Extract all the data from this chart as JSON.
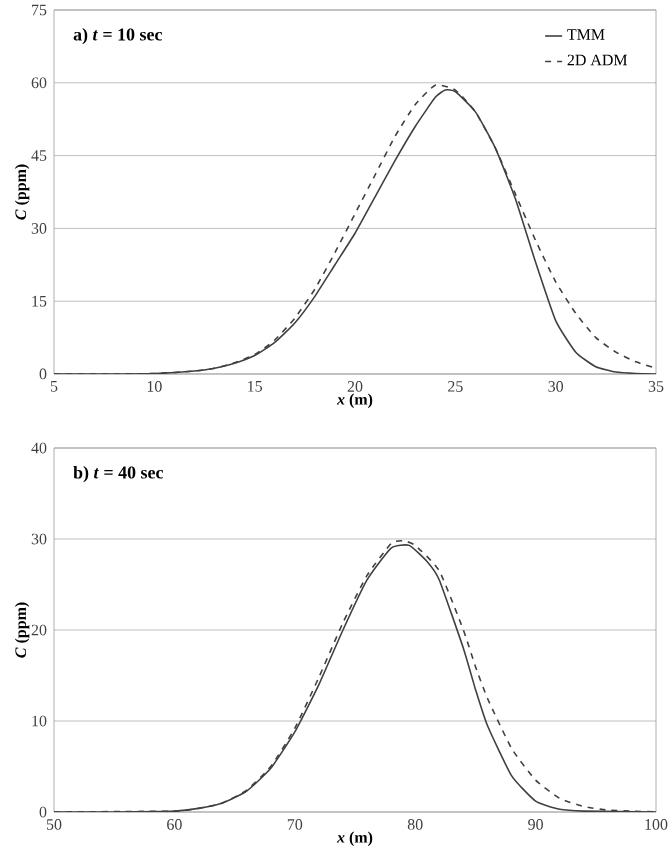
{
  "chart_data": [
    {
      "type": "line",
      "title": "a) *t* = 10 sec",
      "xlabel": "*x* (m)",
      "ylabel": "*C* (ppm)",
      "xlim": [
        5,
        35
      ],
      "ylim": [
        0,
        75
      ],
      "xticks": [
        5,
        10,
        15,
        20,
        25,
        30,
        35
      ],
      "yticks": [
        0,
        15,
        30,
        45,
        60,
        75
      ],
      "grid": "y",
      "legend": "top right",
      "series": [
        {
          "name": "TMM",
          "color": "#404040",
          "line_style": "solid",
          "x": [
            5,
            8,
            10,
            12,
            13,
            14,
            15,
            16,
            17,
            18,
            19,
            20,
            21,
            22,
            23,
            24,
            24.5,
            25,
            26,
            27,
            28,
            29,
            30,
            31,
            32,
            33,
            34,
            35
          ],
          "values": [
            0,
            0,
            0.1,
            0.6,
            1.2,
            2.2,
            3.8,
            6.5,
            10.5,
            16,
            22.5,
            29,
            36.5,
            44,
            51,
            57,
            58.5,
            58.2,
            54,
            46.5,
            36,
            23,
            11,
            4.5,
            1.5,
            0.4,
            0.1,
            0
          ]
        },
        {
          "name": "2D ADM",
          "color": "#404040",
          "line_style": "dashed",
          "x": [
            5,
            8,
            10,
            12,
            13,
            14,
            15,
            16,
            17,
            18,
            19,
            20,
            21,
            22,
            23,
            24,
            25,
            26,
            27,
            28,
            29,
            30,
            31,
            32,
            33,
            34,
            35
          ],
          "values": [
            0,
            0,
            0.1,
            0.6,
            1.2,
            2.3,
            4,
            7,
            11.5,
            17.5,
            25,
            33,
            41,
            49,
            55.5,
            59.5,
            58.5,
            54,
            46.5,
            37,
            27.5,
            19,
            12.5,
            7.5,
            4.5,
            2.5,
            1.2
          ]
        }
      ]
    },
    {
      "type": "line",
      "title": "b) *t* = 40 sec",
      "xlabel": "*x* (m)",
      "ylabel": "*C* (ppm)",
      "xlim": [
        50,
        100
      ],
      "ylim": [
        0,
        40
      ],
      "xticks": [
        50,
        60,
        70,
        80,
        90,
        100
      ],
      "yticks": [
        0,
        10,
        20,
        30,
        40
      ],
      "grid": "y",
      "series": [
        {
          "color": "#404040",
          "line_style": "solid",
          "x": [
            50,
            55,
            60,
            62,
            64,
            66,
            68,
            70,
            72,
            74,
            76,
            78,
            79.5,
            81,
            82,
            84,
            85,
            86,
            88,
            90,
            92,
            94,
            100
          ],
          "values": [
            0,
            0,
            0.1,
            0.4,
            1,
            2.3,
            4.8,
            8.8,
            14,
            20,
            25.5,
            29,
            29.3,
            27.5,
            25.5,
            18,
            13.5,
            9.5,
            4,
            1.2,
            0.3,
            0.1,
            0
          ]
        },
        {
          "color": "#404040",
          "line_style": "dashed",
          "x": [
            50,
            60,
            62,
            64,
            66,
            68,
            70,
            72,
            74,
            76,
            78,
            79,
            80,
            82,
            84,
            85,
            86,
            88,
            90,
            92,
            94,
            96,
            98,
            100
          ],
          "values": [
            0,
            0.1,
            0.4,
            1,
            2.4,
            5,
            9.2,
            14.8,
            20.8,
            26,
            29.5,
            29.8,
            29.3,
            26.5,
            20,
            16,
            12.5,
            7,
            3.5,
            1.5,
            0.6,
            0.2,
            0.1,
            0
          ]
        }
      ]
    }
  ]
}
